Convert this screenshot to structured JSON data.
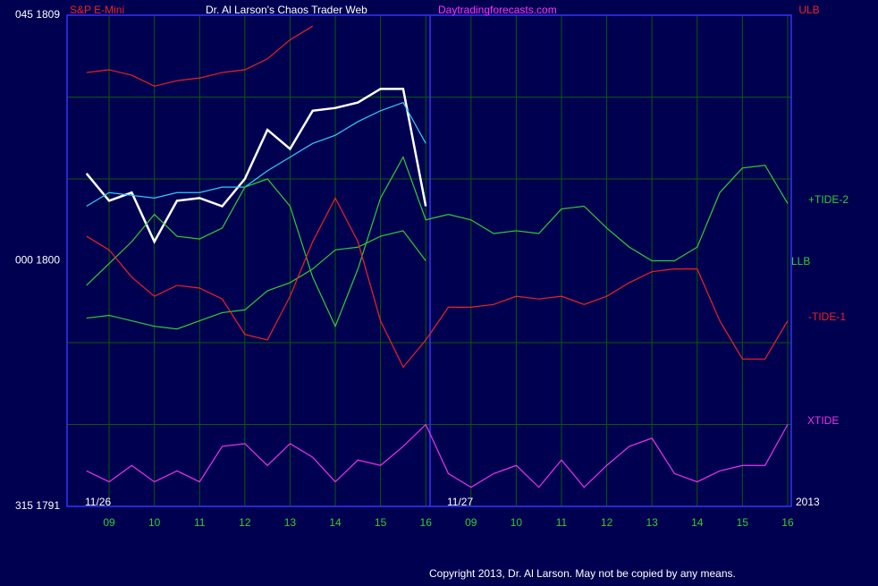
{
  "chart_data": {
    "type": "line",
    "title": "Dr. Al Larson's Chaos Trader Web",
    "subtitle": "Daytradingforecasts.com",
    "copyright": "Copyright 2013, Dr. Al Larson. May not be copied by any means.",
    "date_labels": [
      "11/26",
      "11/27",
      "2013"
    ],
    "xlim": [
      0.07,
      16.08
    ],
    "ylim": [
      1791,
      1809
    ],
    "yticks": [
      {
        "value": 1809,
        "label": "045  1809"
      },
      {
        "value": 1800,
        "label": "000  1800"
      },
      {
        "value": 1791,
        "label": "315  1791"
      }
    ],
    "ygrid": [
      1806,
      1803,
      1797,
      1794
    ],
    "xticks": [
      {
        "value": 1,
        "label": "09"
      },
      {
        "value": 2,
        "label": "10"
      },
      {
        "value": 3,
        "label": "11"
      },
      {
        "value": 4,
        "label": "12"
      },
      {
        "value": 5,
        "label": "13"
      },
      {
        "value": 6,
        "label": "14"
      },
      {
        "value": 7,
        "label": "15"
      },
      {
        "value": 8,
        "label": "16"
      },
      {
        "value": 9,
        "label": "09"
      },
      {
        "value": 10,
        "label": "10"
      },
      {
        "value": 11,
        "label": "11"
      },
      {
        "value": 12,
        "label": "12"
      },
      {
        "value": 13,
        "label": "13"
      },
      {
        "value": 14,
        "label": "14"
      },
      {
        "value": 15,
        "label": "15"
      },
      {
        "value": 16,
        "label": "16"
      }
    ],
    "grid": true,
    "x": [
      0.5,
      1,
      1.5,
      2,
      2.5,
      3,
      3.5,
      4,
      4.5,
      5,
      5.5,
      6,
      6.5,
      7,
      7.5,
      8,
      8.5,
      9,
      9.5,
      10,
      10.5,
      11,
      11.5,
      12,
      12.5,
      13,
      13.5,
      14,
      14.5,
      15,
      15.5,
      16
    ],
    "series": [
      {
        "name": "S&P E-Mini",
        "color": "#ffffff",
        "values": [
          1803.2,
          1802.2,
          1802.5,
          1800.7,
          1802.2,
          1802.3,
          1802.0,
          1803.0,
          1804.8,
          1804.1,
          1805.5,
          1805.6,
          1805.8,
          1806.3,
          1806.3,
          1802.0,
          null,
          null,
          null,
          null,
          null,
          null,
          null,
          null,
          null,
          null,
          null,
          null,
          null,
          null,
          null,
          null
        ]
      },
      {
        "color": "#33ccff",
        "values": [
          1802.0,
          1802.5,
          1802.4,
          1802.3,
          1802.5,
          1802.5,
          1802.7,
          1802.7,
          1803.3,
          1803.8,
          1804.3,
          1804.6,
          1805.1,
          1805.5,
          1805.8,
          1804.3,
          null,
          null,
          null,
          null,
          null,
          null,
          null,
          null,
          null,
          null,
          null,
          null,
          null,
          null,
          null,
          null
        ]
      },
      {
        "name": "ULB",
        "color": "#ee2222",
        "values": [
          1806.9,
          1807.0,
          1806.8,
          1806.4,
          1806.6,
          1806.7,
          1806.9,
          1807.0,
          1807.4,
          1808.1,
          1808.6,
          null,
          null,
          null,
          null,
          null,
          null,
          null,
          null,
          null,
          null,
          null,
          null,
          null,
          null,
          null,
          null,
          null,
          null,
          null,
          null,
          null
        ]
      },
      {
        "name": "+TIDE-2",
        "color": "#33cc33",
        "values": [
          1799.1,
          1799.9,
          1800.7,
          1801.7,
          1800.9,
          1800.8,
          1801.2,
          1802.7,
          1803.0,
          1802.0,
          1799.4,
          1797.6,
          1799.7,
          1802.3,
          1803.8,
          1801.5,
          1801.7,
          1801.5,
          1801.0,
          1801.1,
          1801.0,
          1801.9,
          1802.0,
          1801.2,
          1800.5,
          1800.0,
          1800.0,
          1800.5,
          1802.5,
          1803.4,
          1803.5,
          1802.1
        ]
      },
      {
        "name": "LLB",
        "color": "#33cc33",
        "values": [
          1797.9,
          1798.0,
          1797.8,
          1797.6,
          1797.5,
          1797.8,
          1798.1,
          1798.2,
          1798.9,
          1799.2,
          1799.7,
          1800.4,
          1800.5,
          1800.9,
          1801.1,
          1800.0,
          null,
          null,
          null,
          null,
          null,
          null,
          null,
          null,
          null,
          null,
          null,
          null,
          null,
          null,
          null,
          null
        ]
      },
      {
        "name": "-TIDE-1",
        "color": "#ee2222",
        "values": [
          1800.9,
          1800.4,
          1799.4,
          1798.7,
          1799.1,
          1799.0,
          1798.6,
          1797.3,
          1797.1,
          1798.7,
          1800.7,
          1802.3,
          1800.7,
          1797.8,
          1796.1,
          1797.1,
          1798.3,
          1798.3,
          1798.4,
          1798.7,
          1798.6,
          1798.7,
          1798.4,
          1798.7,
          1799.2,
          1799.6,
          1799.7,
          1799.7,
          1797.8,
          1796.4,
          1796.4,
          1797.8
        ]
      },
      {
        "name": "XTIDE",
        "color": "#ee33ee",
        "values": [
          1792.3,
          1791.9,
          1792.5,
          1791.9,
          1792.3,
          1791.9,
          1793.2,
          1793.3,
          1792.5,
          1793.3,
          1792.8,
          1791.9,
          1792.7,
          1792.5,
          1793.2,
          1794.0,
          1792.2,
          1791.7,
          1792.2,
          1792.5,
          1791.7,
          1792.7,
          1791.7,
          1792.5,
          1793.2,
          1793.5,
          1792.2,
          1791.9,
          1792.3,
          1792.5,
          1792.5,
          1794.0
        ]
      }
    ]
  }
}
